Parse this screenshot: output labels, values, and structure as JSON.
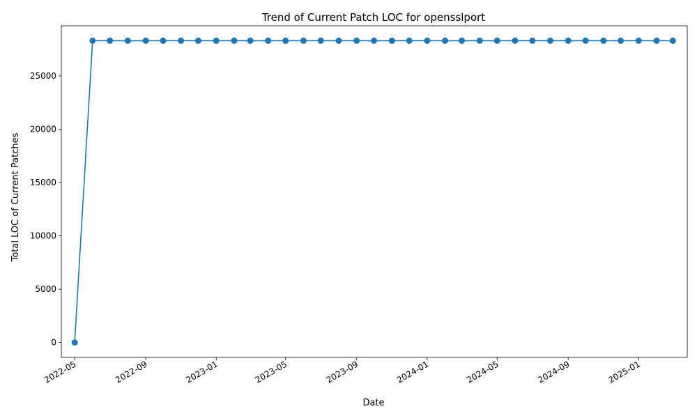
{
  "chart_data": {
    "type": "line",
    "title": "Trend of Current Patch LOC for opensslport",
    "xlabel": "Date",
    "ylabel": "Total LOC of Current Patches",
    "color": "#1f77b4",
    "grid": false,
    "legend": "none",
    "x_ticks": [
      "2022-05",
      "2022-09",
      "2023-01",
      "2023-05",
      "2023-09",
      "2024-01",
      "2024-05",
      "2024-09",
      "2025-01"
    ],
    "y_ticks": [
      0,
      5000,
      10000,
      15000,
      20000,
      25000
    ],
    "ylim": [
      -1400,
      29700
    ],
    "xlim": [
      "2022-04-08",
      "2025-03-26"
    ],
    "series": [
      {
        "x": [
          "2022-05-01",
          "2022-06-01",
          "2022-07-01",
          "2022-08-01",
          "2022-09-01",
          "2022-10-01",
          "2022-11-01",
          "2022-12-01",
          "2023-01-01",
          "2023-02-01",
          "2023-03-01",
          "2023-04-01",
          "2023-05-01",
          "2023-06-01",
          "2023-07-01",
          "2023-08-01",
          "2023-09-01",
          "2023-10-01",
          "2023-11-01",
          "2023-12-01",
          "2024-01-01",
          "2024-02-01",
          "2024-03-01",
          "2024-04-01",
          "2024-05-01",
          "2024-06-01",
          "2024-07-01",
          "2024-08-01",
          "2024-09-01",
          "2024-10-01",
          "2024-11-01",
          "2024-12-01",
          "2025-01-01",
          "2025-02-01",
          "2025-03-01"
        ],
        "values": [
          0,
          28300,
          28300,
          28300,
          28300,
          28300,
          28300,
          28300,
          28300,
          28300,
          28300,
          28300,
          28300,
          28300,
          28300,
          28300,
          28300,
          28300,
          28300,
          28300,
          28300,
          28300,
          28300,
          28300,
          28300,
          28300,
          28300,
          28300,
          28300,
          28300,
          28300,
          28300,
          28300,
          28300,
          28300
        ]
      }
    ]
  }
}
